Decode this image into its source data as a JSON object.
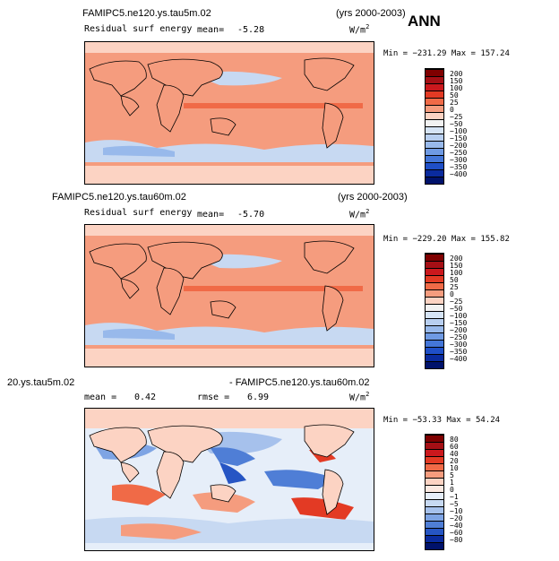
{
  "colors": {
    "warm_bg": "#f59c7e",
    "warm_mid": "#f7b59c",
    "cool_light": "#c7d9f2",
    "cool_mid": "#8fb2e6",
    "cool_dark": "#4f7ed6",
    "land": "#f7a382"
  },
  "panels": [
    {
      "case": "FAMIPC5.ne120.ys.tau5m.02",
      "years": "(yrs 2000-2003)",
      "variable": "Residual surf energy",
      "mean_label": "mean=",
      "mean_value": "-5.28",
      "units": "W/m",
      "units_sup": "2",
      "minmax": "Min = −231.29  Max = 157.24",
      "colorbar_levels": [
        "200",
        "150",
        "100",
        "50",
        "25",
        "0",
        "−25",
        "−50",
        "−100",
        "−150",
        "−200",
        "−250",
        "−300",
        "−350",
        "−400"
      ],
      "colorbar_colors": [
        "#7f0000",
        "#a50f15",
        "#cb181d",
        "#e33a24",
        "#f06a47",
        "#f59c7e",
        "#fcd3c3",
        "#f2f2f2",
        "#d6e4f5",
        "#b8cff0",
        "#98b9eb",
        "#6f9ae3",
        "#4476d8",
        "#1f4fc7",
        "#0a2b9e",
        "#00126b"
      ]
    },
    {
      "case": "FAMIPC5.ne120.ys.tau60m.02",
      "years": "(yrs 2000-2003)",
      "variable": "Residual surf energy",
      "mean_label": "mean=",
      "mean_value": "-5.70",
      "units": "W/m",
      "units_sup": "2",
      "minmax": "Min = −229.20  Max = 155.82",
      "colorbar_levels": [
        "200",
        "150",
        "100",
        "50",
        "25",
        "0",
        "−25",
        "−50",
        "−100",
        "−150",
        "−200",
        "−250",
        "−300",
        "−350",
        "−400"
      ],
      "colorbar_colors": [
        "#7f0000",
        "#a50f15",
        "#cb181d",
        "#e33a24",
        "#f06a47",
        "#f59c7e",
        "#fcd3c3",
        "#f2f2f2",
        "#d6e4f5",
        "#b8cff0",
        "#98b9eb",
        "#6f9ae3",
        "#4476d8",
        "#1f4fc7",
        "#0a2b9e",
        "#00126b"
      ]
    },
    {
      "case_left": "20.ys.tau5m.02",
      "case_right": "- FAMIPC5.ne120.ys.tau60m.02",
      "mean_label": "mean =",
      "mean_value": "0.42",
      "rmse_label": "rmse =",
      "rmse_value": "6.99",
      "units": "W/m",
      "units_sup": "2",
      "minmax": "Min = −53.33  Max =  54.24",
      "colorbar_levels": [
        "80",
        "60",
        "40",
        "20",
        "10",
        "5",
        "1",
        "0",
        "−1",
        "−5",
        "−10",
        "−20",
        "−40",
        "−60",
        "−80"
      ],
      "colorbar_colors": [
        "#7f0000",
        "#a50f15",
        "#cb181d",
        "#e33a24",
        "#f06a47",
        "#f59c7e",
        "#fcd3c3",
        "#fbe9e1",
        "#e6eef9",
        "#c7d9f2",
        "#a6c1ec",
        "#7ea4e4",
        "#4f7ed6",
        "#2655c4",
        "#0a2b9e",
        "#00126b"
      ]
    }
  ],
  "season": "ANN"
}
